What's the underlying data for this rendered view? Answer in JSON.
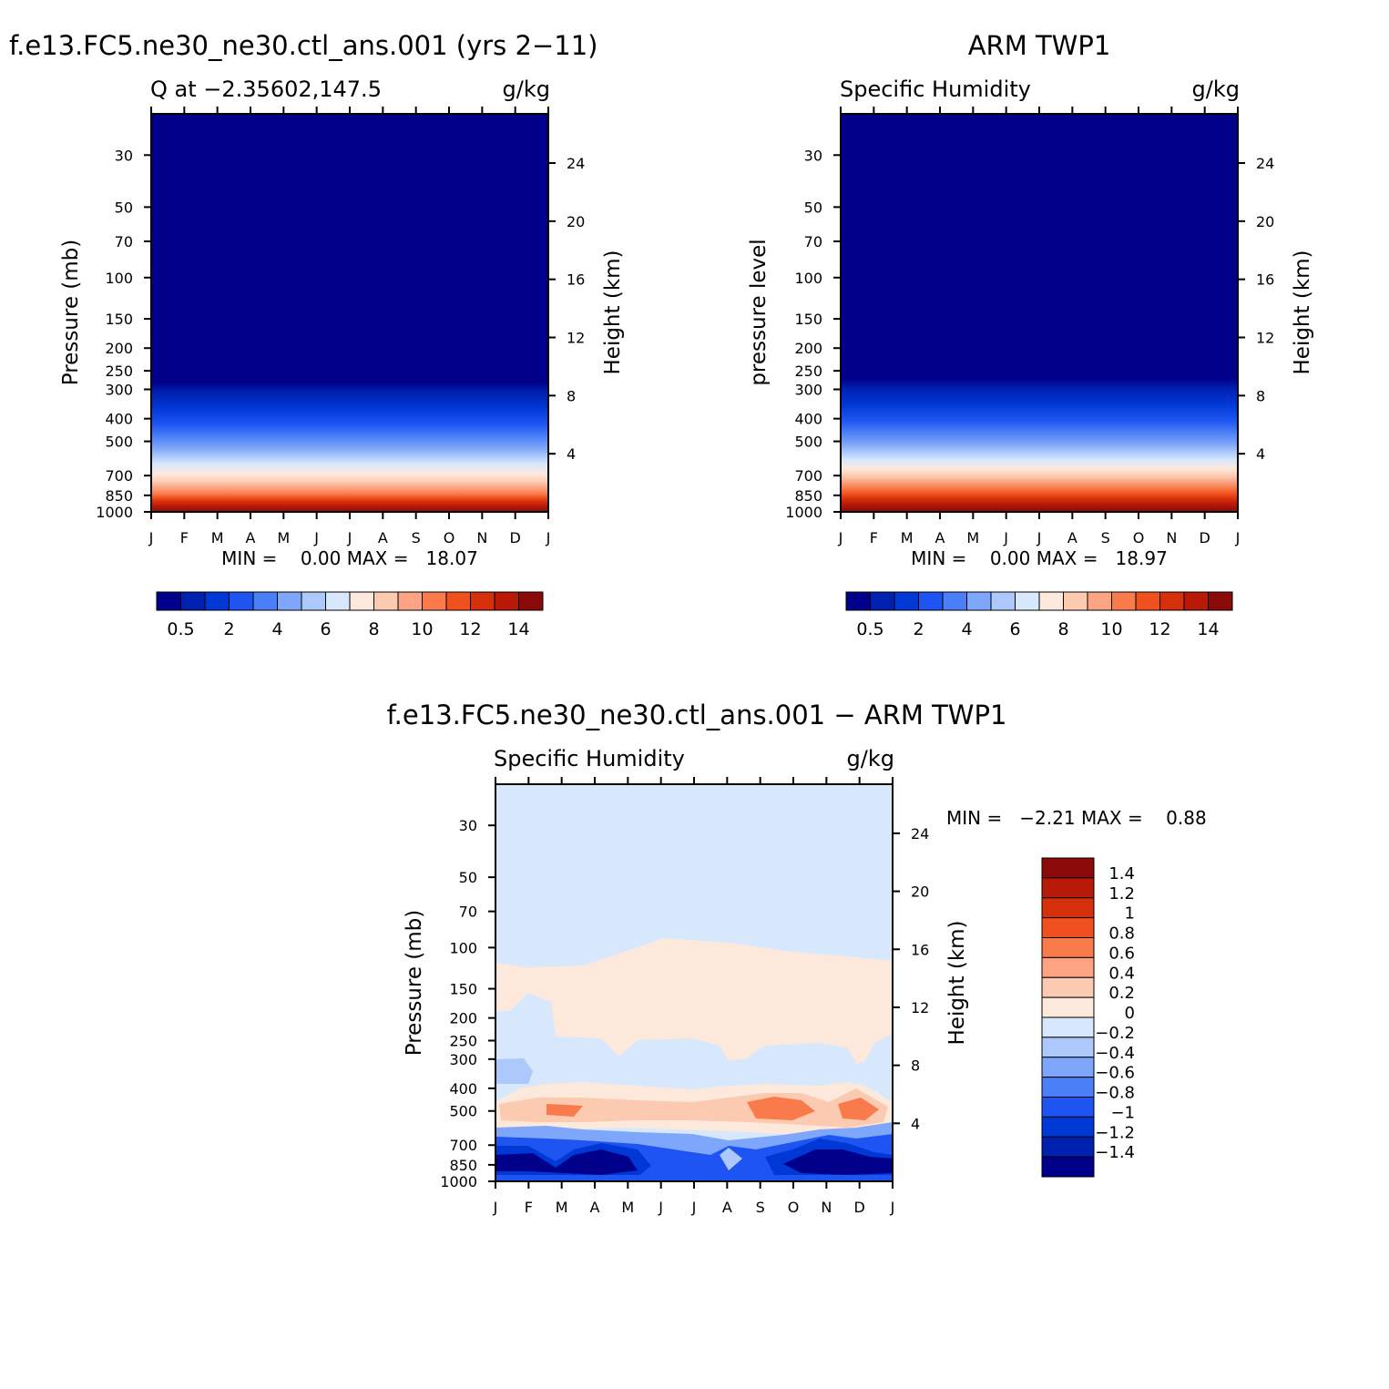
{
  "chart_data": [
    {
      "type": "heatmap",
      "panel_title": "f.e13.FC5.ne30_ne30.ctl_ans.001 (yrs 2−11)",
      "left_label": "Q at −2.35602,147.5",
      "units": "g/kg",
      "ylabel": "Pressure (mb)",
      "y2label": "Height (km)",
      "x_ticks": [
        "J",
        "F",
        "M",
        "A",
        "M",
        "J",
        "J",
        "A",
        "S",
        "O",
        "N",
        "D",
        "J"
      ],
      "y_ticks": [
        "30",
        "50",
        "70",
        "100",
        "150",
        "200",
        "250",
        "300",
        "400",
        "500",
        "700",
        "850",
        "1000"
      ],
      "y_range_mb": [
        20,
        1000
      ],
      "y2_ticks": [
        "24",
        "20",
        "16",
        "12",
        "8",
        "4"
      ],
      "min_max_text": "MIN =    0.00 MAX =   18.07",
      "min": 0.0,
      "max": 18.07,
      "colorbar": {
        "orientation": "horizontal",
        "levels": [
          0.5,
          1,
          2,
          3,
          4,
          5,
          6,
          7,
          8,
          9,
          10,
          11,
          12,
          13,
          14
        ],
        "labels": [
          "0.5",
          "2",
          "4",
          "6",
          "8",
          "10",
          "12",
          "14"
        ],
        "colors": [
          "#00008b",
          "#0020b0",
          "#0038d6",
          "#1e55f2",
          "#4a7ff7",
          "#7ea6fa",
          "#adc8fb",
          "#d7e8fd",
          "#fde9dc",
          "#fccab0",
          "#fba382",
          "#f97a4a",
          "#f0501e",
          "#d52f0b",
          "#b91a07",
          "#8a0a0a"
        ]
      }
    },
    {
      "type": "heatmap",
      "panel_title": "ARM TWP1",
      "left_label": "Specific Humidity",
      "units": "g/kg",
      "ylabel": "pressure level",
      "y2label": "Height (km)",
      "x_ticks": [
        "J",
        "F",
        "M",
        "A",
        "M",
        "J",
        "J",
        "A",
        "S",
        "O",
        "N",
        "D",
        "J"
      ],
      "y_ticks": [
        "30",
        "50",
        "70",
        "100",
        "150",
        "200",
        "250",
        "300",
        "400",
        "500",
        "700",
        "850",
        "1000"
      ],
      "y_range_mb": [
        20,
        1000
      ],
      "y2_ticks": [
        "24",
        "20",
        "16",
        "12",
        "8",
        "4"
      ],
      "min_max_text": "MIN =    0.00 MAX =   18.97",
      "min": 0.0,
      "max": 18.97,
      "colorbar": {
        "orientation": "horizontal",
        "levels": [
          0.5,
          1,
          2,
          3,
          4,
          5,
          6,
          7,
          8,
          9,
          10,
          11,
          12,
          13,
          14
        ],
        "labels": [
          "0.5",
          "2",
          "4",
          "6",
          "8",
          "10",
          "12",
          "14"
        ],
        "colors": [
          "#00008b",
          "#0020b0",
          "#0038d6",
          "#1e55f2",
          "#4a7ff7",
          "#7ea6fa",
          "#adc8fb",
          "#d7e8fd",
          "#fde9dc",
          "#fccab0",
          "#fba382",
          "#f97a4a",
          "#f0501e",
          "#d52f0b",
          "#b91a07",
          "#8a0a0a"
        ]
      }
    },
    {
      "type": "heatmap",
      "panel_title": "f.e13.FC5.ne30_ne30.ctl_ans.001 − ARM TWP1",
      "left_label": "Specific Humidity",
      "units": "g/kg",
      "ylabel": "Pressure (mb)",
      "y2label": "Height (km)",
      "x_ticks": [
        "J",
        "F",
        "M",
        "A",
        "M",
        "J",
        "J",
        "A",
        "S",
        "O",
        "N",
        "D",
        "J"
      ],
      "y_ticks": [
        "30",
        "50",
        "70",
        "100",
        "150",
        "200",
        "250",
        "300",
        "400",
        "500",
        "700",
        "850",
        "1000"
      ],
      "y_range_mb": [
        20,
        1000
      ],
      "y2_ticks": [
        "24",
        "20",
        "16",
        "12",
        "8",
        "4"
      ],
      "min_max_text": "MIN =   −2.21 MAX =    0.88",
      "min": -2.21,
      "max": 0.88,
      "colorbar": {
        "orientation": "vertical",
        "levels": [
          1.4,
          1.2,
          1,
          0.8,
          0.6,
          0.4,
          0.2,
          0,
          -0.2,
          -0.4,
          -0.6,
          -0.8,
          -1,
          -1.2,
          -1.4
        ],
        "labels": [
          "1.4",
          "1.2",
          "1",
          "0.8",
          "0.6",
          "0.4",
          "0.2",
          "0",
          "−0.2",
          "−0.4",
          "−0.6",
          "−0.8",
          "−1",
          "−1.2",
          "−1.4"
        ],
        "colors": [
          "#8a0a0a",
          "#b91a07",
          "#d52f0b",
          "#f0501e",
          "#f97a4a",
          "#fba382",
          "#fccab0",
          "#fde9dc",
          "#d7e8fd",
          "#adc8fb",
          "#7ea6fa",
          "#4a7ff7",
          "#1e55f2",
          "#0038d6",
          "#0020b0",
          "#00008b"
        ]
      }
    }
  ]
}
